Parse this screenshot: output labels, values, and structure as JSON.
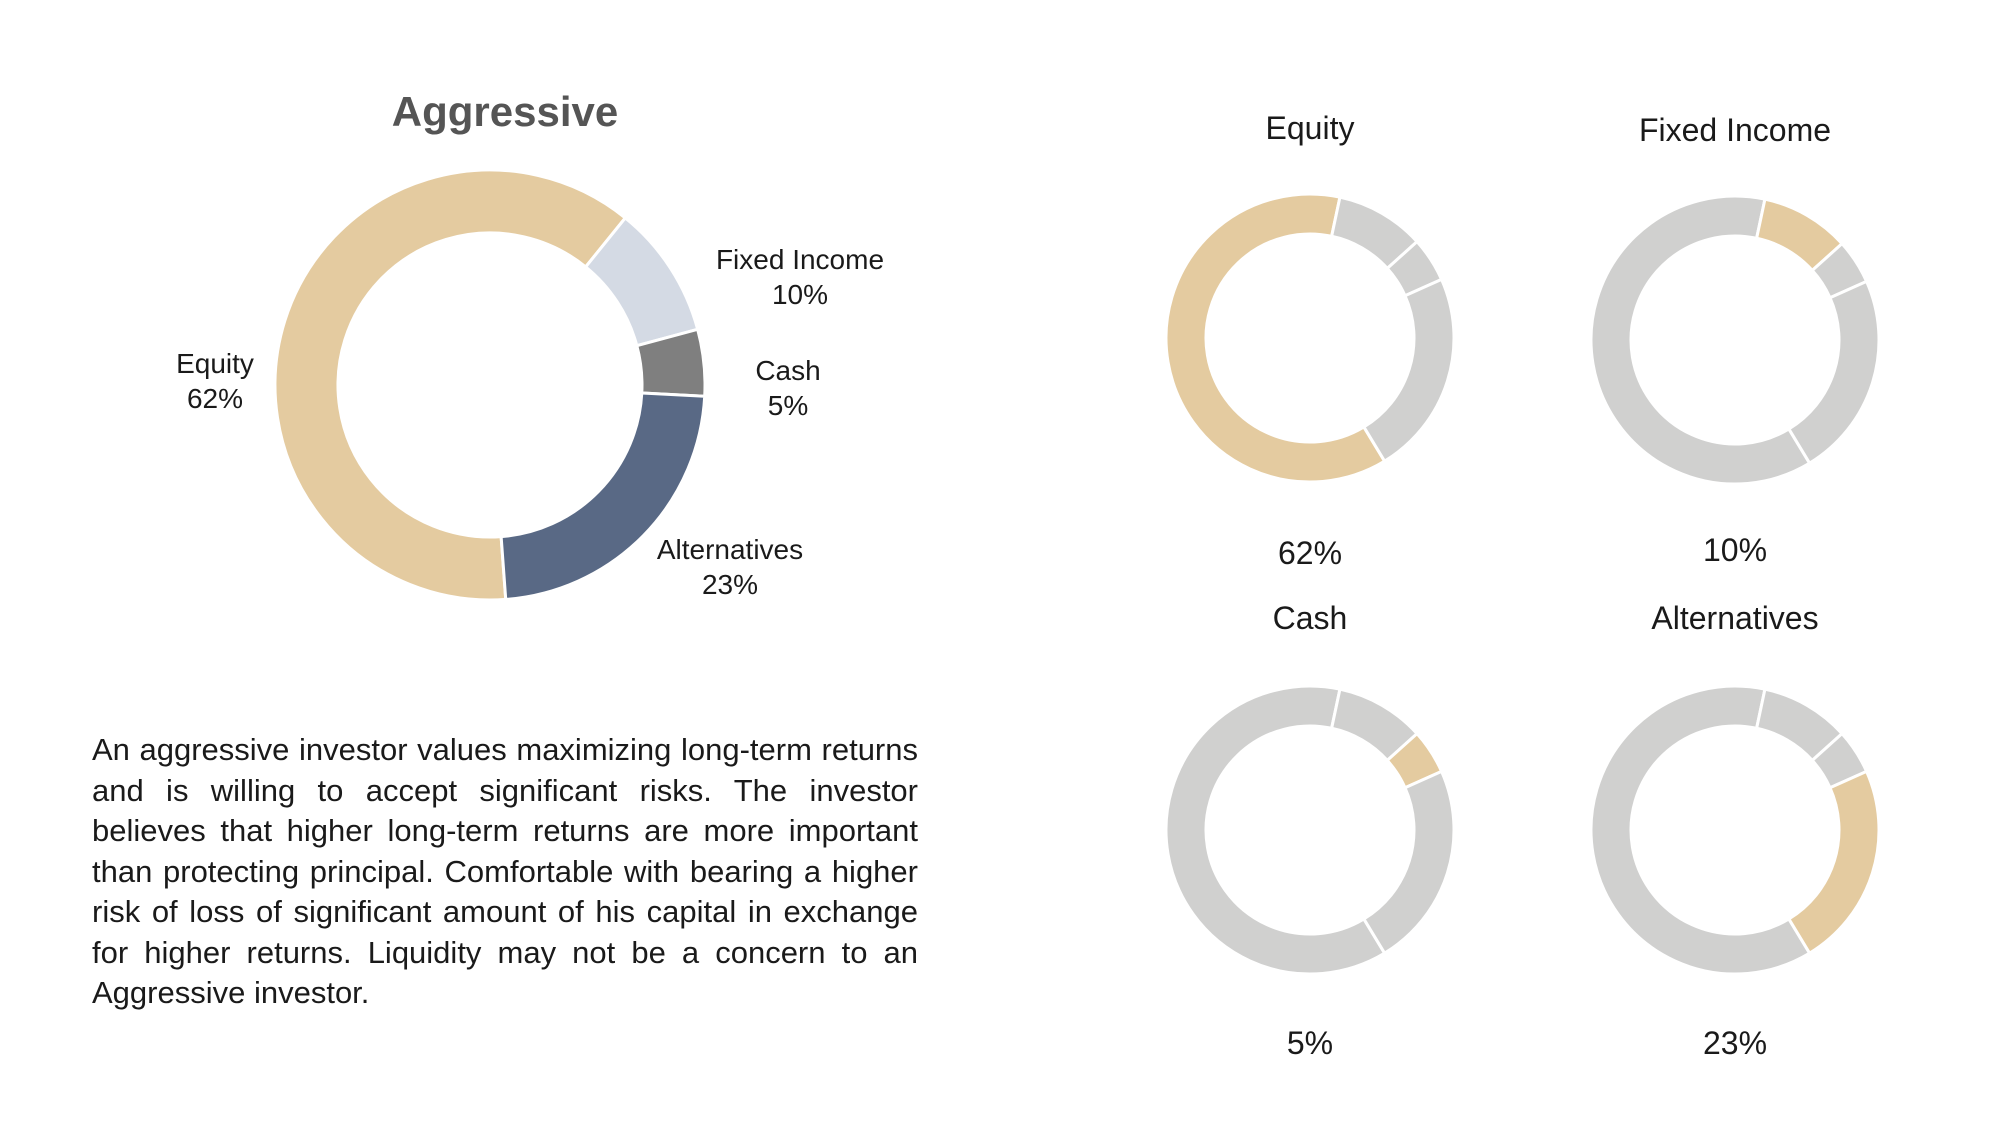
{
  "chart_data": [
    {
      "type": "pie",
      "title": "Aggressive",
      "slices": [
        {
          "label": "Equity",
          "value": 62,
          "display": "62%"
        },
        {
          "label": "Fixed Income",
          "value": 10,
          "display": "10%"
        },
        {
          "label": "Cash",
          "value": 5,
          "display": "5%"
        },
        {
          "label": "Alternatives",
          "value": 23,
          "display": "23%"
        }
      ],
      "colors": [
        "#E4CBA0",
        "#D4DAE4",
        "#7F7F7F",
        "#596985"
      ]
    },
    {
      "type": "pie",
      "title": "Equity",
      "highlight_index": 0,
      "values": [
        62,
        10,
        5,
        23
      ],
      "value_label": "62%"
    },
    {
      "type": "pie",
      "title": "Fixed Income",
      "highlight_index": 1,
      "values": [
        62,
        10,
        5,
        23
      ],
      "value_label": "10%"
    },
    {
      "type": "pie",
      "title": "Cash",
      "highlight_index": 2,
      "values": [
        62,
        10,
        5,
        23
      ],
      "value_label": "5%"
    },
    {
      "type": "pie",
      "title": "Alternatives",
      "highlight_index": 3,
      "values": [
        62,
        10,
        5,
        23
      ],
      "value_label": "23%"
    }
  ],
  "description": "An aggressive investor values maximizing long-term returns and is willing to accept significant risks. The investor believes that higher long-term returns are more important than protecting principal. Comfortable with bearing a higher risk of loss of significant amount of his capital in exchange for higher returns. Liquidity may not be a concern to an Aggressive investor.",
  "mini_colors": {
    "highlight": "#E4CBA0",
    "base": "#D0D0CF"
  }
}
